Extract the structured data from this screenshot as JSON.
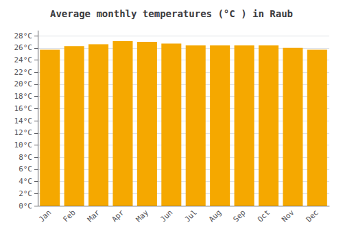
{
  "chart_data": {
    "type": "bar",
    "title": "Average monthly temperatures (°C ) in Raub",
    "categories": [
      "Jan",
      "Feb",
      "Mar",
      "Apr",
      "May",
      "Jun",
      "Jul",
      "Aug",
      "Sep",
      "Oct",
      "Nov",
      "Dec"
    ],
    "values": [
      25.7,
      26.3,
      26.6,
      27.1,
      27.0,
      26.7,
      26.4,
      26.4,
      26.4,
      26.4,
      26.0,
      25.7
    ],
    "color": "#F5A800",
    "ylim": [
      0,
      28.8
    ],
    "yticks": [
      {
        "value": 0,
        "label": "0°C"
      },
      {
        "value": 2,
        "label": "2°C"
      },
      {
        "value": 4,
        "label": "4°C"
      },
      {
        "value": 6,
        "label": "6°C"
      },
      {
        "value": 8,
        "label": "8°C"
      },
      {
        "value": 10,
        "label": "10°C"
      },
      {
        "value": 12,
        "label": "12°C"
      },
      {
        "value": 14,
        "label": "14°C"
      },
      {
        "value": 16,
        "label": "16°C"
      },
      {
        "value": 18,
        "label": "18°C"
      },
      {
        "value": 20,
        "label": "20°C"
      },
      {
        "value": 22,
        "label": "22°C"
      },
      {
        "value": 24,
        "label": "24°C"
      },
      {
        "value": 26,
        "label": "26°C"
      },
      {
        "value": 28,
        "label": "28°C"
      }
    ],
    "grid": true
  }
}
